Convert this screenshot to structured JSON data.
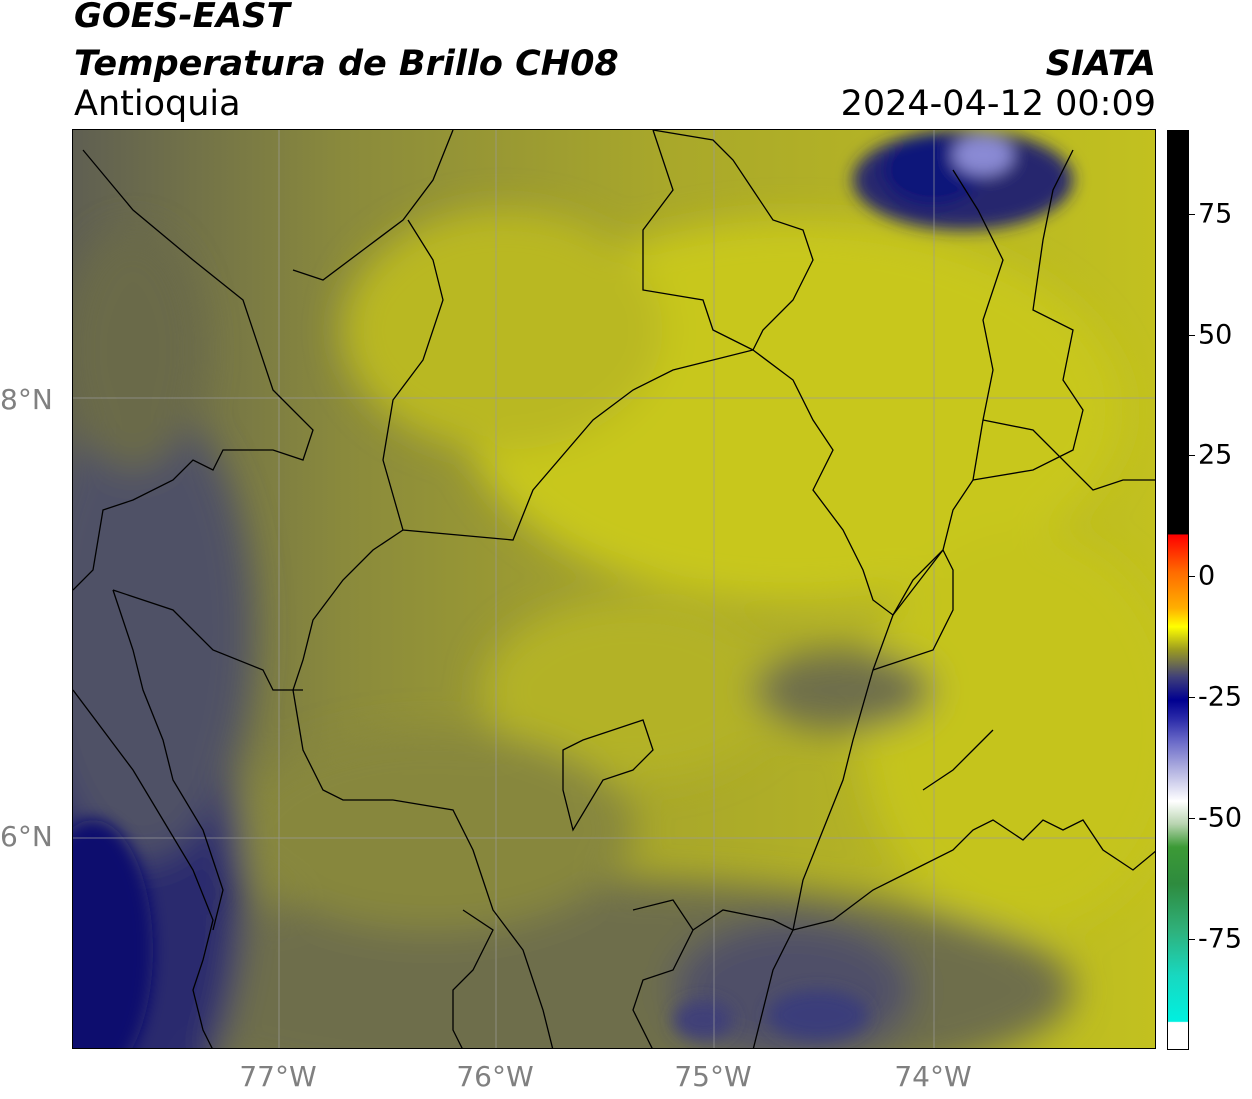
{
  "header": {
    "title": "GOES-EAST",
    "subtitle": "Temperatura de Brillo CH08",
    "region": "Antioquia",
    "agency": "SIATA",
    "datetime": "2024-04-12 00:09"
  },
  "axes": {
    "lat_labels": [
      "8°N",
      "6°N"
    ],
    "lon_labels": [
      "77°W",
      "76°W",
      "75°W",
      "74°W"
    ]
  },
  "colorbar": {
    "ticks": [
      "75",
      "50",
      "25",
      "0",
      "-25",
      "-50",
      "-75"
    ]
  },
  "colors": {
    "yellow_high": "#c9c81a",
    "olive": "#8a8a3c",
    "gray_olive": "#5f5f55",
    "blue_cold": "#1e2070",
    "deep_blue": "#0b0f6e",
    "light_blue": "#8a8ad4"
  }
}
